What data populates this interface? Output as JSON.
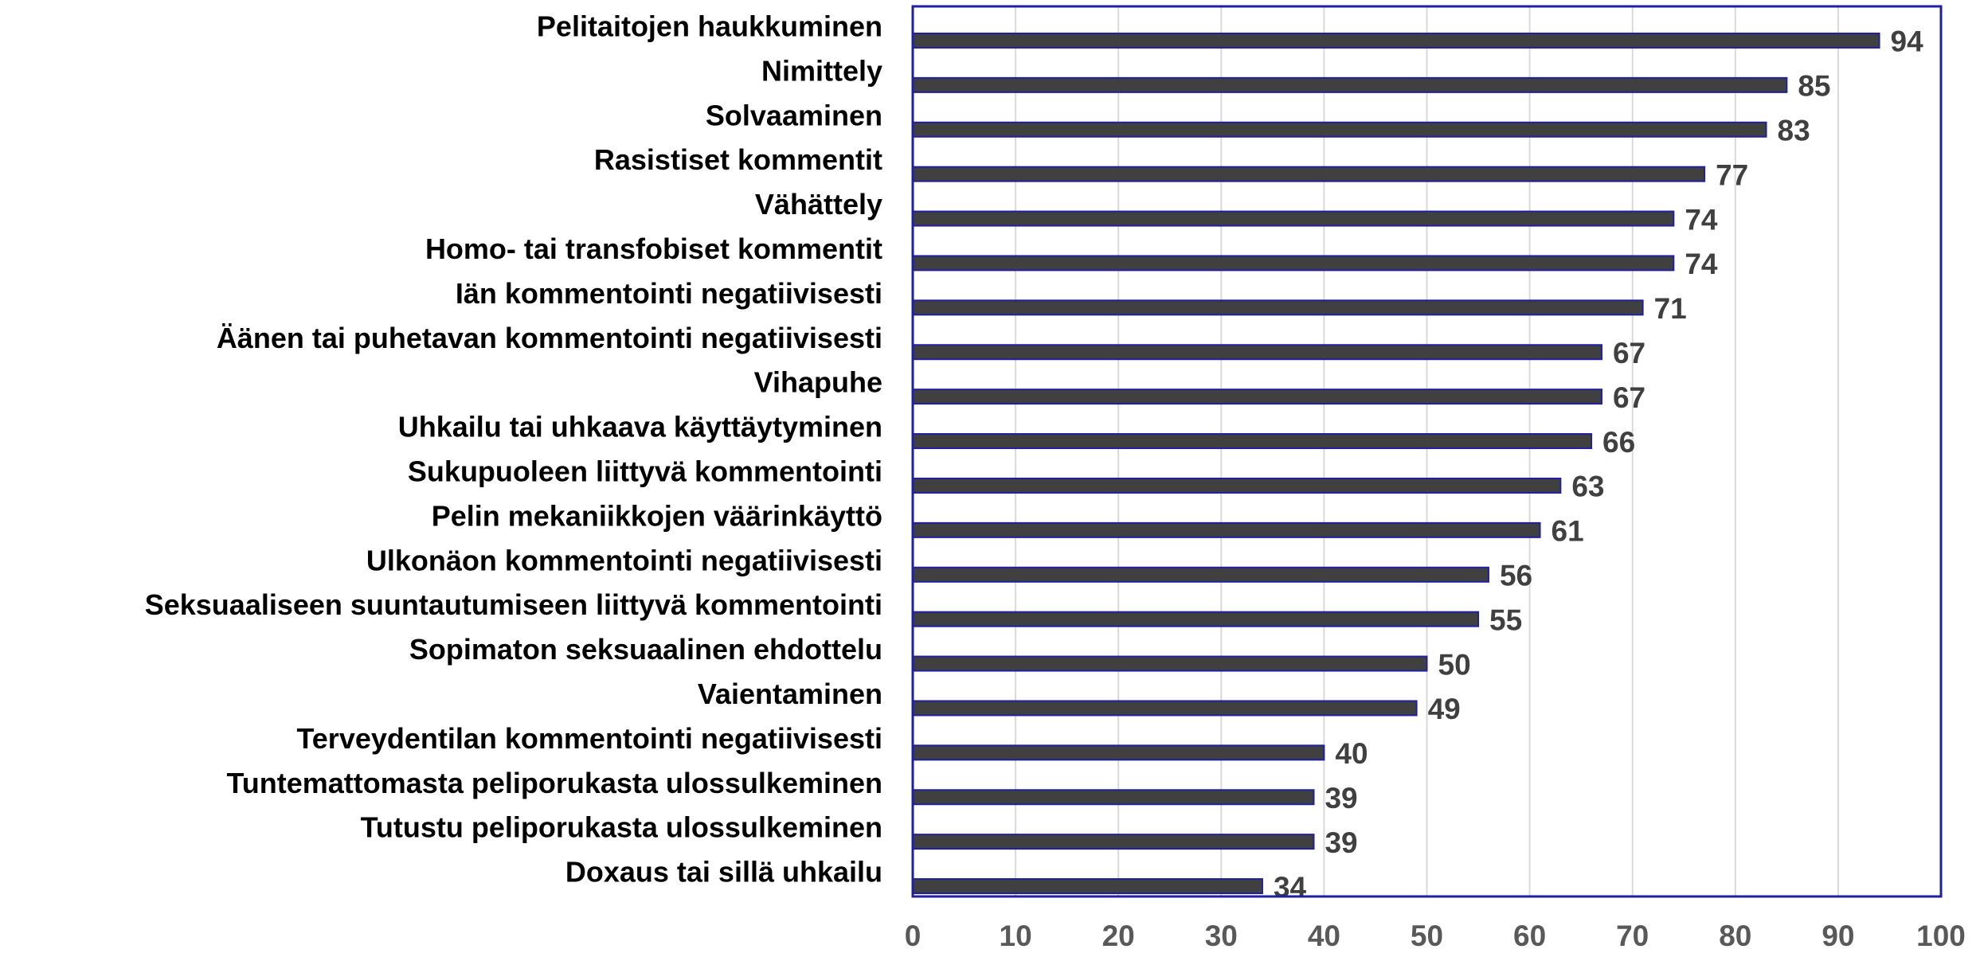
{
  "chart_data": {
    "type": "barh",
    "categories": [
      "Pelitaitojen haukkuminen",
      "Nimittely",
      "Solvaaminen",
      "Rasistiset kommentit",
      "Vähättely",
      "Homo- tai transfobiset kommentit",
      "Iän kommentointi negatiivisesti",
      "Äänen tai puhetavan kommentointi negatiivisesti",
      "Vihapuhe",
      "Uhkailu tai uhkaava käyttäytyminen",
      "Sukupuoleen liittyvä kommentointi",
      "Pelin mekaniikkojen väärinkäyttö",
      "Ulkonäon kommentointi negatiivisesti",
      "Seksuaaliseen suuntautumiseen liittyvä kommentointi",
      "Sopimaton seksuaalinen ehdottelu",
      "Vaientaminen",
      "Terveydentilan kommentointi negatiivisesti",
      "Tuntemattomasta peliporukasta ulossulkeminen",
      "Tutustu peliporukasta ulossulkeminen",
      "Doxaus tai sillä uhkailu"
    ],
    "values": [
      94,
      85,
      83,
      77,
      74,
      74,
      71,
      67,
      67,
      66,
      63,
      61,
      56,
      55,
      50,
      49,
      40,
      39,
      39,
      34
    ],
    "color": "#404040",
    "xlim": [
      0,
      100
    ],
    "xticks": [
      0,
      10,
      20,
      30,
      40,
      50,
      60,
      70,
      80,
      90,
      100
    ],
    "grid": true
  }
}
